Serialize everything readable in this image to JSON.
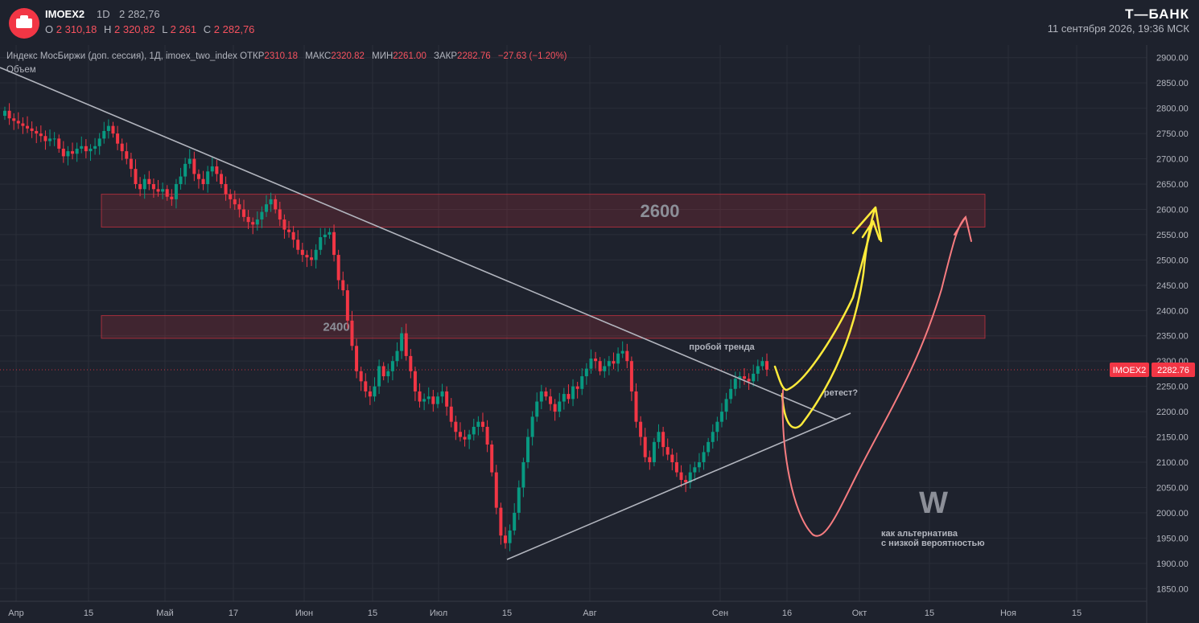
{
  "header": {
    "symbol": "IMOEX2",
    "timeframe": "1D",
    "last_price": "2 282,76",
    "ohlc": {
      "o_label": "O",
      "o": "2 310,18",
      "h_label": "H",
      "h": "2 320,82",
      "l_label": "L",
      "l": "2 261",
      "c_label": "C",
      "c": "2 282,76"
    },
    "brand": "Т—БАНК",
    "datetime": "11 сентября 2026, 19:36 МСК"
  },
  "legend": {
    "title": "Индекс МосБиржи (доп. сессия), 1Д, imoex_two_index",
    "open_label": "ОТКР",
    "open": "2310.18",
    "high_label": "МАКС",
    "high": "2320.82",
    "low_label": "МИН",
    "low": "2261.00",
    "close_label": "ЗАКР",
    "close": "2282.76",
    "change": "−27.63 (−1.20%)",
    "volume_label": "Объем"
  },
  "colors": {
    "background": "#1e222d",
    "up": "#089981",
    "down": "#f23645",
    "grid": "#2a2e39",
    "trend": "#b2b5be",
    "zone": "#f23645",
    "yellow": "#ffeb3b",
    "pink": "#f77c80"
  },
  "chart_data": {
    "type": "candlestick",
    "ylim": [
      1825,
      2925
    ],
    "y_ticks": [
      "2900.00",
      "2850.00",
      "2800.00",
      "2750.00",
      "2700.00",
      "2650.00",
      "2600.00",
      "2550.00",
      "2500.00",
      "2450.00",
      "2400.00",
      "2350.00",
      "2300.00",
      "2250.00",
      "2200.00",
      "2150.00",
      "2100.00",
      "2050.00",
      "2000.00",
      "1950.00",
      "1900.00",
      "1850.00"
    ],
    "x_ticks": [
      "Апр",
      "15",
      "Май",
      "17",
      "Июн",
      "15",
      "Июл",
      "15",
      "Авг",
      "Сен",
      "16",
      "Окт",
      "15",
      "Ноя",
      "15"
    ],
    "last_price_label": {
      "symbol": "IMOEX2",
      "value": "2282.76"
    },
    "zones": [
      {
        "label": "2600",
        "low": 2565,
        "high": 2630
      },
      {
        "label": "2400",
        "low": 2345,
        "high": 2390
      }
    ],
    "annotations": {
      "breakout": "пробой тренда",
      "retest": "ретест?",
      "pattern": "W",
      "alt_line1": "как альтернатива",
      "alt_line2": "с низкой вероятностью"
    },
    "closes": [
      2795,
      2780,
      2775,
      2770,
      2765,
      2760,
      2755,
      2750,
      2745,
      2735,
      2740,
      2740,
      2720,
      2705,
      2715,
      2710,
      2720,
      2725,
      2715,
      2720,
      2725,
      2740,
      2755,
      2765,
      2750,
      2730,
      2715,
      2700,
      2680,
      2650,
      2640,
      2660,
      2650,
      2640,
      2635,
      2640,
      2625,
      2620,
      2650,
      2665,
      2690,
      2700,
      2670,
      2660,
      2650,
      2675,
      2685,
      2670,
      2650,
      2630,
      2620,
      2610,
      2600,
      2585,
      2575,
      2570,
      2580,
      2595,
      2610,
      2620,
      2600,
      2580,
      2560,
      2555,
      2540,
      2520,
      2510,
      2505,
      2500,
      2520,
      2545,
      2550,
      2555,
      2510,
      2460,
      2440,
      2380,
      2330,
      2280,
      2260,
      2240,
      2230,
      2250,
      2290,
      2270,
      2280,
      2300,
      2320,
      2355,
      2310,
      2280,
      2240,
      2220,
      2225,
      2230,
      2215,
      2230,
      2240,
      2210,
      2180,
      2160,
      2150,
      2145,
      2155,
      2170,
      2180,
      2170,
      2135,
      2080,
      2010,
      1955,
      1940,
      1965,
      2000,
      2050,
      2100,
      2150,
      2190,
      2220,
      2240,
      2230,
      2215,
      2200,
      2220,
      2235,
      2225,
      2250,
      2245,
      2270,
      2285,
      2305,
      2300,
      2280,
      2290,
      2300,
      2295,
      2315,
      2320,
      2300,
      2240,
      2180,
      2150,
      2110,
      2100,
      2140,
      2160,
      2130,
      2115,
      2100,
      2080,
      2065,
      2060,
      2080,
      2090,
      2100,
      2120,
      2140,
      2160,
      2180,
      2200,
      2225,
      2245,
      2265,
      2270,
      2265,
      2260,
      2275,
      2290,
      2300,
      2283
    ]
  }
}
